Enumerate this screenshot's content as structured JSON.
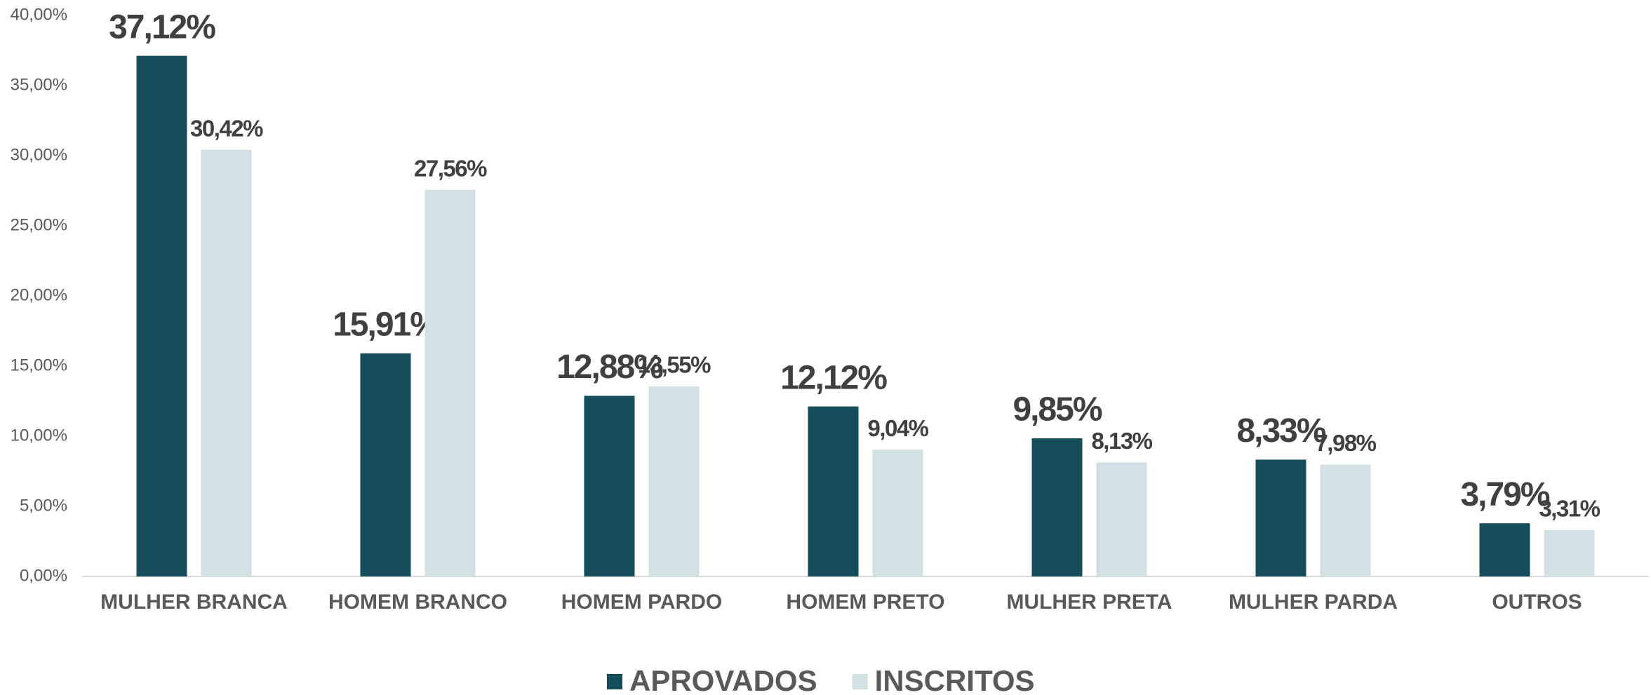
{
  "chart_data": {
    "type": "bar",
    "categories": [
      "MULHER BRANCA",
      "HOMEM BRANCO",
      "HOMEM PARDO",
      "HOMEM PRETO",
      "MULHER PRETA",
      "MULHER PARDA",
      "OUTROS"
    ],
    "series": [
      {
        "name": "APROVADOS",
        "color": "#154d5a",
        "values": [
          37.12,
          15.91,
          12.88,
          12.12,
          9.85,
          8.33,
          3.79
        ],
        "value_labels": [
          "37,12%",
          "15,91%",
          "12,88%",
          "12,12%",
          "9,85%",
          "8,33%",
          "3,79%"
        ]
      },
      {
        "name": "INSCRITOS",
        "color": "#d0e0e3",
        "values": [
          30.42,
          27.56,
          13.55,
          9.04,
          8.13,
          7.98,
          3.31
        ],
        "value_labels": [
          "30,42%",
          "27,56%",
          "13,55%",
          "9,04%",
          "8,13%",
          "7,98%",
          "3,31%"
        ]
      }
    ],
    "ylim": [
      0,
      40
    ],
    "yticks": [
      {
        "value": 0,
        "label": "0,00%"
      },
      {
        "value": 5,
        "label": "5,00%"
      },
      {
        "value": 10,
        "label": "10,00%"
      },
      {
        "value": 15,
        "label": "15,00%"
      },
      {
        "value": 20,
        "label": "20,00%"
      },
      {
        "value": 25,
        "label": "25,00%"
      },
      {
        "value": 30,
        "label": "30,00%"
      },
      {
        "value": 35,
        "label": "35,00%"
      },
      {
        "value": 40,
        "label": "40,00%"
      }
    ],
    "grid": false,
    "legend": "bottom"
  }
}
